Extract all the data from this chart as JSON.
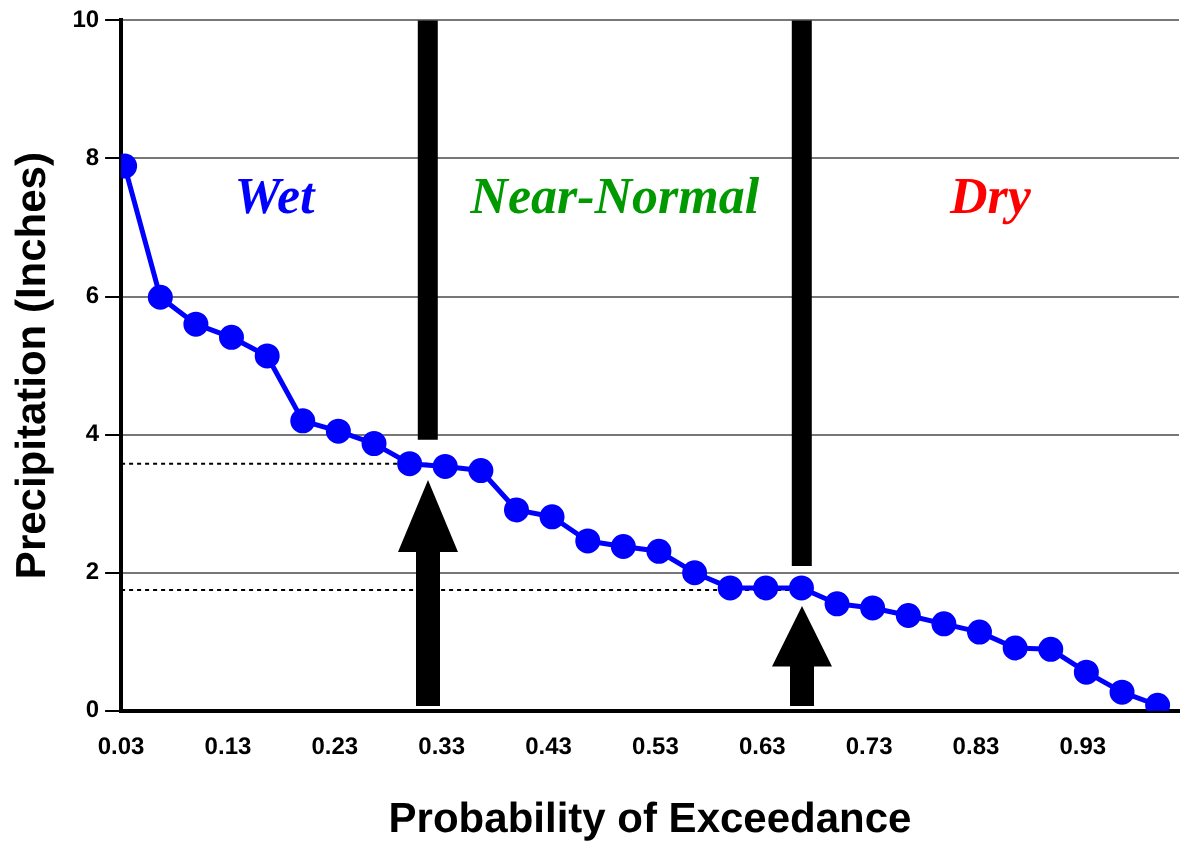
{
  "chart_data": {
    "type": "line",
    "xlabel": "Probability of Exceedance",
    "ylabel": "Precipitation (Inches)",
    "x": [
      0.0333,
      0.0667,
      0.1,
      0.1333,
      0.1667,
      0.2,
      0.2333,
      0.2667,
      0.3,
      0.3333,
      0.3667,
      0.4,
      0.4333,
      0.4667,
      0.5,
      0.5333,
      0.5667,
      0.6,
      0.6333,
      0.6667,
      0.7,
      0.7333,
      0.7667,
      0.8,
      0.8333,
      0.8667,
      0.9,
      0.9333,
      0.9667,
      1.0
    ],
    "series": [
      {
        "color": "#0000ff",
        "values": [
          7.89,
          5.99,
          5.6,
          5.41,
          5.14,
          4.2,
          4.05,
          3.87,
          3.58,
          3.54,
          3.48,
          2.91,
          2.81,
          2.46,
          2.38,
          2.31,
          2.0,
          1.78,
          1.78,
          1.78,
          1.55,
          1.49,
          1.38,
          1.26,
          1.14,
          0.91,
          0.89,
          0.56,
          0.27,
          0.08
        ]
      }
    ],
    "xlim": [
      0.03,
      1.02
    ],
    "xticks": [
      0.03,
      0.13,
      0.23,
      0.33,
      0.43,
      0.53,
      0.63,
      0.73,
      0.83,
      0.93
    ],
    "ylim": [
      0,
      10
    ],
    "yticks": [
      0,
      2,
      4,
      6,
      8,
      10
    ],
    "grid": "y",
    "marker": "circle",
    "line_style": "solid",
    "legend": false,
    "ref_lines": [
      {
        "axis": "x",
        "value": 0.317,
        "color": "#000000"
      },
      {
        "axis": "x",
        "value": 0.667,
        "color": "#000000"
      },
      {
        "axis": "y",
        "value": 3.58,
        "color": "#000000",
        "line_style": "dotted"
      },
      {
        "axis": "y",
        "value": 1.75,
        "color": "#000000",
        "line_style": "dotted"
      }
    ],
    "annotations": [
      "Wet",
      "Near-Normal",
      "Dry"
    ]
  }
}
